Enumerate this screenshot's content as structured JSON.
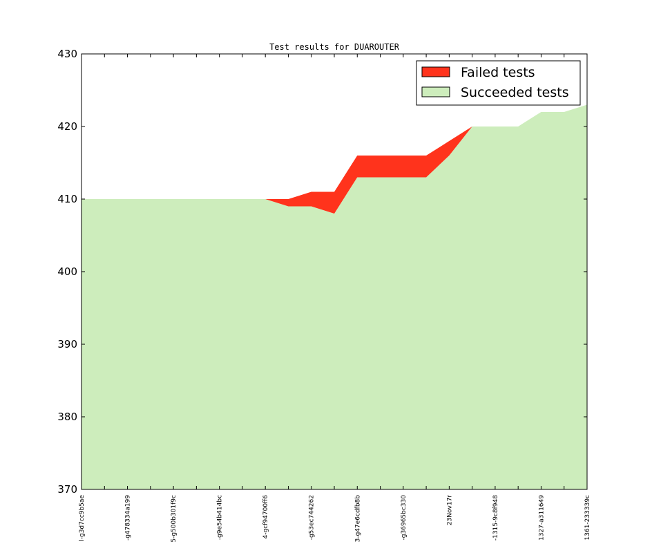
{
  "chart_data": {
    "type": "area",
    "title": "Test results for DUAROUTER",
    "xlabel": "",
    "ylabel": "",
    "ylim": [
      370,
      430
    ],
    "yticks": [
      370,
      380,
      390,
      400,
      410,
      420,
      430
    ],
    "categories": [
      "0",
      "1",
      "2",
      "3",
      "4",
      "5",
      "6",
      "7",
      "8",
      "9",
      "10",
      "11",
      "12",
      "13",
      "14",
      "15",
      "16",
      "17",
      "18",
      "19",
      "20",
      "21",
      "22"
    ],
    "x_tick_labels": [
      {
        "index": 0,
        "label": "l-g3d7cc9b5ae"
      },
      {
        "index": 2,
        "label": "-g478334a199"
      },
      {
        "index": 4,
        "label": "5-g500b301f9c"
      },
      {
        "index": 6,
        "label": "-g9e54b414bc"
      },
      {
        "index": 8,
        "label": "4-gcf94700ff6"
      },
      {
        "index": 10,
        "label": "-g53ec744262"
      },
      {
        "index": 12,
        "label": "3-g47e6cdfb8b"
      },
      {
        "index": 14,
        "label": "-g36965bc330"
      },
      {
        "index": 16,
        "label": "23Nov17r"
      },
      {
        "index": 18,
        "label": "-1315-9c8f948"
      },
      {
        "index": 20,
        "label": "1327-a311649"
      },
      {
        "index": 22,
        "label": "1361-233339c"
      }
    ],
    "series": [
      {
        "name": "Succeeded tests",
        "color": "#cdedbc",
        "values": [
          410,
          410,
          410,
          410,
          410,
          410,
          410,
          410,
          410,
          409,
          409,
          408,
          413,
          413,
          413,
          413,
          416,
          420,
          420,
          420,
          422,
          422,
          423
        ]
      },
      {
        "name": "Failed tests",
        "color": "#ff331c",
        "values": [
          0,
          0,
          0,
          0,
          0,
          0,
          0,
          0,
          0,
          1,
          2,
          3,
          3,
          3,
          3,
          3,
          2,
          0,
          0,
          0,
          0,
          0,
          0
        ]
      }
    ],
    "legend": {
      "placement": "top-right"
    },
    "grid": false
  }
}
